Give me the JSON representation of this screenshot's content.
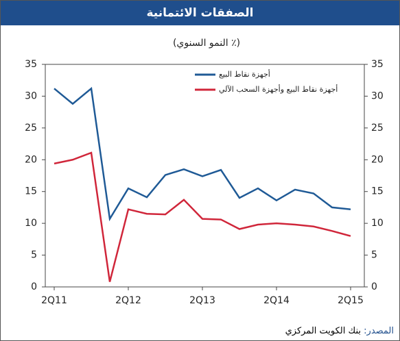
{
  "chart_data": {
    "type": "line",
    "title": "الصفقات الائتمانية",
    "subtitle": "(٪ النمو السنوي)",
    "categories": [
      "2Q11",
      null,
      null,
      null,
      "2Q12",
      null,
      null,
      null,
      "2Q13",
      null,
      null,
      null,
      "2Q14",
      null,
      null,
      null,
      "2Q15"
    ],
    "series": [
      {
        "name": "أجهزة نقاط البيع",
        "color": "#1f5a96",
        "values": [
          31.2,
          28.8,
          31.2,
          10.7,
          15.5,
          14.1,
          17.6,
          18.5,
          17.4,
          18.4,
          14.0,
          15.5,
          13.6,
          15.3,
          14.7,
          12.5,
          12.2
        ]
      },
      {
        "name": "أجهزة نقاط البيع وأجهزة السحب الآلي",
        "color": "#d0263a",
        "values": [
          19.4,
          20.0,
          21.1,
          0.8,
          12.2,
          11.5,
          11.4,
          13.7,
          10.7,
          10.6,
          9.1,
          9.8,
          10.0,
          9.8,
          9.5,
          8.8,
          8.0
        ]
      }
    ],
    "ylim": [
      0,
      35
    ],
    "yticks": [
      0,
      5,
      10,
      15,
      20,
      25,
      30,
      35
    ],
    "y2lim": [
      0,
      35
    ],
    "y2ticks": [
      0,
      5,
      10,
      15,
      20,
      25,
      30,
      35
    ],
    "grid": false,
    "source": {
      "label": "المصدر:",
      "text": "بنك الكويت المركزي"
    }
  }
}
